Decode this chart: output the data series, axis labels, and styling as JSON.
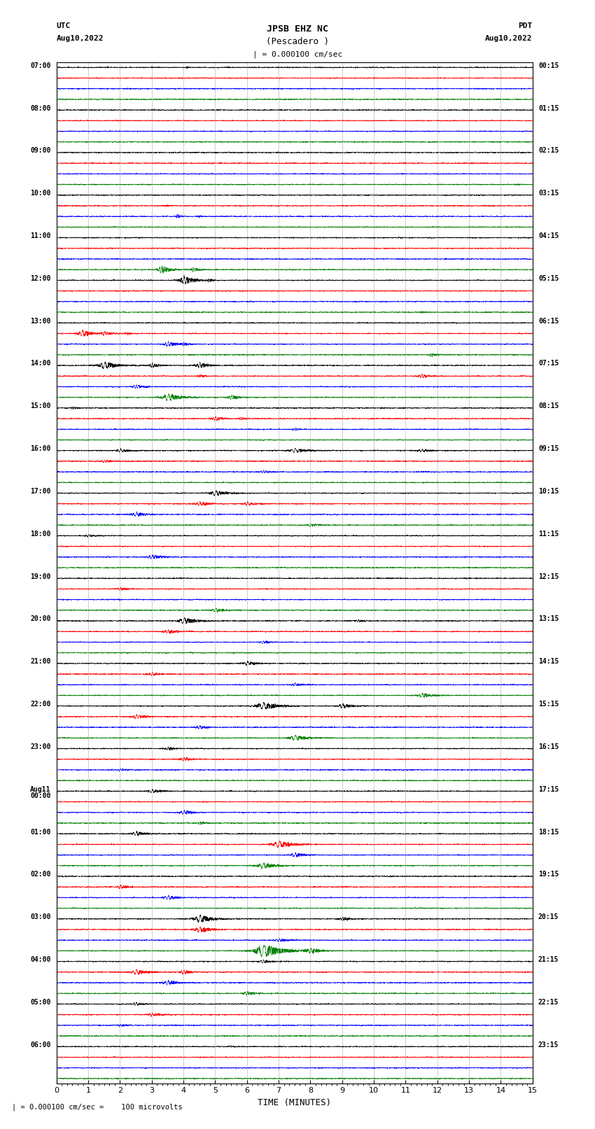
{
  "title_line1": "JPSB EHZ NC",
  "title_line2": "(Pescadero )",
  "scale_label": "| = 0.000100 cm/sec",
  "bottom_label": "TIME (MINUTES)",
  "footnote": "| = 0.000100 cm/sec =    100 microvolts",
  "bg_color": "white",
  "trace_color_cycle": [
    "black",
    "red",
    "blue",
    "green"
  ],
  "figwidth": 8.5,
  "figheight": 16.13,
  "minutes": 15.0,
  "n_pts": 3600,
  "left_labels": [
    "07:00",
    "",
    "",
    "",
    "08:00",
    "",
    "",
    "",
    "09:00",
    "",
    "",
    "",
    "10:00",
    "",
    "",
    "",
    "11:00",
    "",
    "",
    "",
    "12:00",
    "",
    "",
    "",
    "13:00",
    "",
    "",
    "",
    "14:00",
    "",
    "",
    "",
    "15:00",
    "",
    "",
    "",
    "16:00",
    "",
    "",
    "",
    "17:00",
    "",
    "",
    "",
    "18:00",
    "",
    "",
    "",
    "19:00",
    "",
    "",
    "",
    "20:00",
    "",
    "",
    "",
    "21:00",
    "",
    "",
    "",
    "22:00",
    "",
    "",
    "",
    "23:00",
    "",
    "",
    "",
    "Aug11\n00:00",
    "",
    "",
    "",
    "01:00",
    "",
    "",
    "",
    "02:00",
    "",
    "",
    "",
    "03:00",
    "",
    "",
    "",
    "04:00",
    "",
    "",
    "",
    "05:00",
    "",
    "",
    "",
    "06:00",
    "",
    "",
    ""
  ],
  "right_labels": [
    "00:15",
    "",
    "",
    "",
    "01:15",
    "",
    "",
    "",
    "02:15",
    "",
    "",
    "",
    "03:15",
    "",
    "",
    "",
    "04:15",
    "",
    "",
    "",
    "05:15",
    "",
    "",
    "",
    "06:15",
    "",
    "",
    "",
    "07:15",
    "",
    "",
    "",
    "08:15",
    "",
    "",
    "",
    "09:15",
    "",
    "",
    "",
    "10:15",
    "",
    "",
    "",
    "11:15",
    "",
    "",
    "",
    "12:15",
    "",
    "",
    "",
    "13:15",
    "",
    "",
    "",
    "14:15",
    "",
    "",
    "",
    "15:15",
    "",
    "",
    "",
    "16:15",
    "",
    "",
    "",
    "17:15",
    "",
    "",
    "",
    "18:15",
    "",
    "",
    "",
    "19:15",
    "",
    "",
    "",
    "20:15",
    "",
    "",
    "",
    "21:15",
    "",
    "",
    "",
    "22:15",
    "",
    "",
    "",
    "23:15",
    "",
    "",
    ""
  ],
  "noise_levels": {
    "default": 0.12,
    "elevated_groups": [
      9,
      10,
      11,
      12,
      13,
      14,
      15,
      16
    ],
    "elevated_factor": 3.5,
    "very_elevated_groups": [
      17,
      18,
      19,
      20,
      21,
      22
    ],
    "very_elevated_factor": 2.5
  },
  "seismic_events": [
    {
      "group": 0,
      "trace": 0,
      "time": 4.1,
      "amp": 6,
      "dur": 0.05
    },
    {
      "group": 2,
      "trace": 3,
      "time": 14.5,
      "amp": 4,
      "dur": 0.08
    },
    {
      "group": 3,
      "trace": 1,
      "time": 3.5,
      "amp": 5,
      "dur": 0.1
    },
    {
      "group": 3,
      "trace": 2,
      "time": 3.8,
      "amp": 8,
      "dur": 0.15
    },
    {
      "group": 3,
      "trace": 2,
      "time": 4.5,
      "amp": 5,
      "dur": 0.1
    },
    {
      "group": 4,
      "trace": 3,
      "time": 3.3,
      "amp": 16,
      "dur": 0.3
    },
    {
      "group": 4,
      "trace": 3,
      "time": 4.3,
      "amp": 9,
      "dur": 0.2
    },
    {
      "group": 5,
      "trace": 0,
      "time": 4.0,
      "amp": 18,
      "dur": 0.35
    },
    {
      "group": 5,
      "trace": 0,
      "time": 4.8,
      "amp": 7,
      "dur": 0.15
    },
    {
      "group": 5,
      "trace": 3,
      "time": 11.5,
      "amp": 5,
      "dur": 0.1
    },
    {
      "group": 6,
      "trace": 1,
      "time": 0.8,
      "amp": 12,
      "dur": 0.4
    },
    {
      "group": 6,
      "trace": 1,
      "time": 1.5,
      "amp": 8,
      "dur": 0.3
    },
    {
      "group": 6,
      "trace": 1,
      "time": 2.2,
      "amp": 5,
      "dur": 0.2
    },
    {
      "group": 6,
      "trace": 2,
      "time": 3.5,
      "amp": 10,
      "dur": 0.35
    },
    {
      "group": 6,
      "trace": 2,
      "time": 4.0,
      "amp": 7,
      "dur": 0.2
    },
    {
      "group": 6,
      "trace": 3,
      "time": 11.8,
      "amp": 7,
      "dur": 0.2
    },
    {
      "group": 7,
      "trace": 0,
      "time": 1.5,
      "amp": 14,
      "dur": 0.5
    },
    {
      "group": 7,
      "trace": 0,
      "time": 3.0,
      "amp": 9,
      "dur": 0.3
    },
    {
      "group": 7,
      "trace": 0,
      "time": 4.5,
      "amp": 11,
      "dur": 0.35
    },
    {
      "group": 7,
      "trace": 1,
      "time": 4.5,
      "amp": 6,
      "dur": 0.2
    },
    {
      "group": 7,
      "trace": 1,
      "time": 11.5,
      "amp": 8,
      "dur": 0.3
    },
    {
      "group": 7,
      "trace": 2,
      "time": 2.5,
      "amp": 8,
      "dur": 0.3
    },
    {
      "group": 7,
      "trace": 3,
      "time": 3.5,
      "amp": 14,
      "dur": 0.5
    },
    {
      "group": 7,
      "trace": 3,
      "time": 5.5,
      "amp": 9,
      "dur": 0.3
    },
    {
      "group": 8,
      "trace": 0,
      "time": 0.5,
      "amp": 5,
      "dur": 0.2
    },
    {
      "group": 8,
      "trace": 1,
      "time": 5.0,
      "amp": 8,
      "dur": 0.3
    },
    {
      "group": 8,
      "trace": 1,
      "time": 5.8,
      "amp": 6,
      "dur": 0.2
    },
    {
      "group": 8,
      "trace": 2,
      "time": 7.5,
      "amp": 5,
      "dur": 0.2
    },
    {
      "group": 9,
      "trace": 0,
      "time": 2.0,
      "amp": 7,
      "dur": 0.4
    },
    {
      "group": 9,
      "trace": 0,
      "time": 7.5,
      "amp": 8,
      "dur": 0.5
    },
    {
      "group": 9,
      "trace": 0,
      "time": 11.5,
      "amp": 6,
      "dur": 0.4
    },
    {
      "group": 9,
      "trace": 1,
      "time": 1.5,
      "amp": 6,
      "dur": 0.3
    },
    {
      "group": 9,
      "trace": 2,
      "time": 6.5,
      "amp": 5,
      "dur": 0.3
    },
    {
      "group": 10,
      "trace": 0,
      "time": 5.0,
      "amp": 10,
      "dur": 0.5
    },
    {
      "group": 10,
      "trace": 1,
      "time": 4.5,
      "amp": 8,
      "dur": 0.4
    },
    {
      "group": 10,
      "trace": 1,
      "time": 6.0,
      "amp": 7,
      "dur": 0.4
    },
    {
      "group": 10,
      "trace": 2,
      "time": 2.5,
      "amp": 9,
      "dur": 0.4
    },
    {
      "group": 10,
      "trace": 3,
      "time": 8.0,
      "amp": 6,
      "dur": 0.3
    },
    {
      "group": 11,
      "trace": 0,
      "time": 1.0,
      "amp": 5,
      "dur": 0.3
    },
    {
      "group": 11,
      "trace": 2,
      "time": 3.0,
      "amp": 9,
      "dur": 0.4
    },
    {
      "group": 12,
      "trace": 1,
      "time": 2.0,
      "amp": 6,
      "dur": 0.3
    },
    {
      "group": 12,
      "trace": 3,
      "time": 5.0,
      "amp": 8,
      "dur": 0.4
    },
    {
      "group": 13,
      "trace": 0,
      "time": 4.0,
      "amp": 12,
      "dur": 0.5
    },
    {
      "group": 13,
      "trace": 0,
      "time": 9.5,
      "amp": 5,
      "dur": 0.3
    },
    {
      "group": 13,
      "trace": 1,
      "time": 3.5,
      "amp": 8,
      "dur": 0.4
    },
    {
      "group": 13,
      "trace": 2,
      "time": 6.5,
      "amp": 6,
      "dur": 0.3
    },
    {
      "group": 14,
      "trace": 0,
      "time": 6.0,
      "amp": 8,
      "dur": 0.4
    },
    {
      "group": 14,
      "trace": 1,
      "time": 3.0,
      "amp": 7,
      "dur": 0.35
    },
    {
      "group": 14,
      "trace": 2,
      "time": 7.5,
      "amp": 6,
      "dur": 0.3
    },
    {
      "group": 14,
      "trace": 3,
      "time": 11.5,
      "amp": 9,
      "dur": 0.4
    },
    {
      "group": 15,
      "trace": 0,
      "time": 6.5,
      "amp": 14,
      "dur": 0.6
    },
    {
      "group": 15,
      "trace": 0,
      "time": 9.0,
      "amp": 9,
      "dur": 0.4
    },
    {
      "group": 15,
      "trace": 1,
      "time": 2.5,
      "amp": 8,
      "dur": 0.4
    },
    {
      "group": 15,
      "trace": 2,
      "time": 4.5,
      "amp": 7,
      "dur": 0.35
    },
    {
      "group": 15,
      "trace": 3,
      "time": 7.5,
      "amp": 11,
      "dur": 0.5
    },
    {
      "group": 16,
      "trace": 0,
      "time": 3.5,
      "amp": 6,
      "dur": 0.3
    },
    {
      "group": 16,
      "trace": 1,
      "time": 4.0,
      "amp": 7,
      "dur": 0.35
    },
    {
      "group": 16,
      "trace": 2,
      "time": 2.0,
      "amp": 5,
      "dur": 0.3
    },
    {
      "group": 17,
      "trace": 0,
      "time": 3.0,
      "amp": 7,
      "dur": 0.4
    },
    {
      "group": 17,
      "trace": 2,
      "time": 4.0,
      "amp": 8,
      "dur": 0.4
    },
    {
      "group": 17,
      "trace": 3,
      "time": 4.5,
      "amp": 5,
      "dur": 0.3
    },
    {
      "group": 18,
      "trace": 0,
      "time": 2.5,
      "amp": 9,
      "dur": 0.4
    },
    {
      "group": 18,
      "trace": 1,
      "time": 7.0,
      "amp": 13,
      "dur": 0.6
    },
    {
      "group": 18,
      "trace": 2,
      "time": 7.5,
      "amp": 9,
      "dur": 0.4
    },
    {
      "group": 18,
      "trace": 3,
      "time": 6.5,
      "amp": 12,
      "dur": 0.5
    },
    {
      "group": 19,
      "trace": 1,
      "time": 2.0,
      "amp": 7,
      "dur": 0.35
    },
    {
      "group": 19,
      "trace": 2,
      "time": 3.5,
      "amp": 8,
      "dur": 0.4
    },
    {
      "group": 20,
      "trace": 0,
      "time": 4.5,
      "amp": 15,
      "dur": 0.5
    },
    {
      "group": 20,
      "trace": 0,
      "time": 9.0,
      "amp": 8,
      "dur": 0.3
    },
    {
      "group": 20,
      "trace": 1,
      "time": 4.5,
      "amp": 12,
      "dur": 0.45
    },
    {
      "group": 20,
      "trace": 2,
      "time": 7.0,
      "amp": 7,
      "dur": 0.35
    },
    {
      "group": 20,
      "trace": 3,
      "time": 6.5,
      "amp": 25,
      "dur": 0.7
    },
    {
      "group": 20,
      "trace": 3,
      "time": 8.0,
      "amp": 10,
      "dur": 0.4
    },
    {
      "group": 21,
      "trace": 0,
      "time": 6.5,
      "amp": 7,
      "dur": 0.35
    },
    {
      "group": 21,
      "trace": 1,
      "time": 2.5,
      "amp": 10,
      "dur": 0.45
    },
    {
      "group": 21,
      "trace": 1,
      "time": 4.0,
      "amp": 8,
      "dur": 0.35
    },
    {
      "group": 21,
      "trace": 2,
      "time": 3.5,
      "amp": 9,
      "dur": 0.4
    },
    {
      "group": 21,
      "trace": 3,
      "time": 6.0,
      "amp": 8,
      "dur": 0.35
    },
    {
      "group": 22,
      "trace": 0,
      "time": 2.5,
      "amp": 6,
      "dur": 0.3
    },
    {
      "group": 22,
      "trace": 1,
      "time": 3.0,
      "amp": 7,
      "dur": 0.35
    },
    {
      "group": 22,
      "trace": 2,
      "time": 2.0,
      "amp": 5,
      "dur": 0.3
    },
    {
      "group": 23,
      "trace": 0,
      "time": 5.5,
      "amp": 4,
      "dur": 0.2
    }
  ]
}
